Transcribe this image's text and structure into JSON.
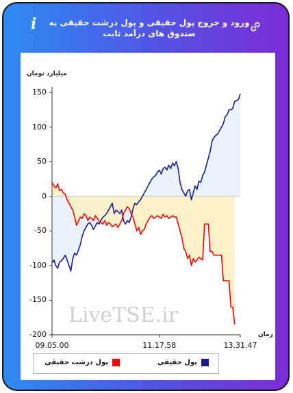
{
  "header": {
    "title": "ورود و خروج پول حقیقی و پول درشت حقیقی به صندوق های درآمد ثابت",
    "info_icon": "info-icon",
    "link_icon": "link-icon"
  },
  "colors": {
    "frame_gradient": [
      "#2d8cf0",
      "#7b2bd6"
    ],
    "series_real": "#1a1a8c",
    "series_big": "#ff0000",
    "fill_positive": "#e6f1f9",
    "fill_negative": "#fbf0bf"
  },
  "watermark": "LiveTSE.ir",
  "chart_data": {
    "type": "line",
    "ylabel": "میلیارد تومان",
    "xlabel": "زمان",
    "ylim": [
      -200,
      150
    ],
    "yticks": [
      150,
      100,
      50,
      0,
      -50,
      -100,
      -150,
      -200
    ],
    "xlim": [
      0,
      100
    ],
    "xticks": [
      {
        "pos": 0,
        "label": "09.05.00"
      },
      {
        "pos": 57,
        "label": "11.17.58"
      },
      {
        "pos": 100,
        "label": "13.31.47"
      }
    ],
    "grid": false,
    "legend_position": "bottom",
    "series": [
      {
        "name": "پول حقیقی",
        "color": "#1a1a8c",
        "points": [
          [
            0,
            -96
          ],
          [
            1,
            -92
          ],
          [
            2,
            -100
          ],
          [
            3,
            -104
          ],
          [
            4,
            -95
          ],
          [
            5,
            -93
          ],
          [
            6,
            -90
          ],
          [
            7,
            -85
          ],
          [
            8,
            -92
          ],
          [
            9,
            -100
          ],
          [
            10,
            -108
          ],
          [
            11,
            -90
          ],
          [
            12,
            -82
          ],
          [
            13,
            -85
          ],
          [
            14,
            -78
          ],
          [
            15,
            -70
          ],
          [
            16,
            -58
          ],
          [
            17,
            -50
          ],
          [
            18,
            -45
          ],
          [
            19,
            -40
          ],
          [
            20,
            -38
          ],
          [
            21,
            -42
          ],
          [
            22,
            -48
          ],
          [
            23,
            -43
          ],
          [
            24,
            -38
          ],
          [
            25,
            -40
          ],
          [
            26,
            -35
          ],
          [
            27,
            -30
          ],
          [
            28,
            -28
          ],
          [
            29,
            -25
          ],
          [
            30,
            -20
          ],
          [
            31,
            -15
          ],
          [
            32,
            -10
          ],
          [
            33,
            -25
          ],
          [
            34,
            -20
          ],
          [
            35,
            -22
          ],
          [
            36,
            -25
          ],
          [
            37,
            -20
          ],
          [
            38,
            -35
          ],
          [
            39,
            -40
          ],
          [
            40,
            -35
          ],
          [
            41,
            -38
          ],
          [
            42,
            -30
          ],
          [
            43,
            -18
          ],
          [
            44,
            -10
          ],
          [
            45,
            -12
          ],
          [
            46,
            -8
          ],
          [
            47,
            -5
          ],
          [
            48,
            0
          ],
          [
            49,
            5
          ],
          [
            50,
            10
          ],
          [
            51,
            15
          ],
          [
            52,
            20
          ],
          [
            53,
            25
          ],
          [
            54,
            28
          ],
          [
            55,
            30
          ],
          [
            56,
            35
          ],
          [
            57,
            38
          ],
          [
            58,
            32
          ],
          [
            59,
            40
          ],
          [
            60,
            42
          ],
          [
            61,
            38
          ],
          [
            62,
            45
          ],
          [
            63,
            40
          ],
          [
            64,
            48
          ],
          [
            65,
            44
          ],
          [
            66,
            50
          ],
          [
            67,
            40
          ],
          [
            68,
            20
          ],
          [
            69,
            10
          ],
          [
            70,
            5
          ],
          [
            71,
            0
          ],
          [
            72,
            8
          ],
          [
            73,
            10
          ],
          [
            74,
            -5
          ],
          [
            75,
            5
          ],
          [
            76,
            15
          ],
          [
            77,
            10
          ],
          [
            78,
            22
          ],
          [
            79,
            20
          ],
          [
            80,
            30
          ],
          [
            81,
            35
          ],
          [
            82,
            45
          ],
          [
            83,
            55
          ],
          [
            84,
            65
          ],
          [
            85,
            80
          ],
          [
            86,
            85
          ],
          [
            87,
            88
          ],
          [
            88,
            90
          ],
          [
            89,
            95
          ],
          [
            90,
            100
          ],
          [
            91,
            105
          ],
          [
            92,
            115
          ],
          [
            93,
            118
          ],
          [
            94,
            125
          ],
          [
            95,
            125
          ],
          [
            96,
            127
          ],
          [
            97,
            137
          ],
          [
            98,
            138
          ],
          [
            99,
            140
          ],
          [
            100,
            148
          ]
        ]
      },
      {
        "name": "پول درشت حقیقی",
        "color": "#ff0000",
        "points": [
          [
            0,
            20
          ],
          [
            1,
            15
          ],
          [
            2,
            12
          ],
          [
            3,
            18
          ],
          [
            4,
            8
          ],
          [
            5,
            10
          ],
          [
            6,
            5
          ],
          [
            7,
            3
          ],
          [
            8,
            -5
          ],
          [
            9,
            -10
          ],
          [
            10,
            -15
          ],
          [
            11,
            -20
          ],
          [
            12,
            -30
          ],
          [
            13,
            -42
          ],
          [
            14,
            -36
          ],
          [
            15,
            -30
          ],
          [
            16,
            -32
          ],
          [
            17,
            -25
          ],
          [
            18,
            -28
          ],
          [
            19,
            -35
          ],
          [
            20,
            -30
          ],
          [
            21,
            -32
          ],
          [
            22,
            -35
          ],
          [
            23,
            -28
          ],
          [
            24,
            -32
          ],
          [
            25,
            -36
          ],
          [
            26,
            -38
          ],
          [
            27,
            -40
          ],
          [
            28,
            -35
          ],
          [
            29,
            -42
          ],
          [
            30,
            -38
          ],
          [
            31,
            -40
          ],
          [
            32,
            -44
          ],
          [
            33,
            -42
          ],
          [
            34,
            -40
          ],
          [
            35,
            -45
          ],
          [
            36,
            -40
          ],
          [
            37,
            -35
          ],
          [
            38,
            -25
          ],
          [
            39,
            -20
          ],
          [
            40,
            -15
          ],
          [
            41,
            -18
          ],
          [
            42,
            -25
          ],
          [
            43,
            -30
          ],
          [
            44,
            -40
          ],
          [
            45,
            -50
          ],
          [
            46,
            -45
          ],
          [
            47,
            -55
          ],
          [
            48,
            -50
          ],
          [
            49,
            -48
          ],
          [
            50,
            -40
          ],
          [
            51,
            -35
          ],
          [
            52,
            -30
          ],
          [
            53,
            -28
          ],
          [
            54,
            -32
          ],
          [
            55,
            -30
          ],
          [
            56,
            -28
          ],
          [
            57,
            -30
          ],
          [
            58,
            -32
          ],
          [
            59,
            -26
          ],
          [
            60,
            -30
          ],
          [
            61,
            -28
          ],
          [
            62,
            -32
          ],
          [
            63,
            -30
          ],
          [
            64,
            -28
          ],
          [
            65,
            -30
          ],
          [
            66,
            -30
          ],
          [
            67,
            -40
          ],
          [
            68,
            -50
          ],
          [
            69,
            -60
          ],
          [
            70,
            -75
          ],
          [
            71,
            -80
          ],
          [
            72,
            -90
          ],
          [
            73,
            -85
          ],
          [
            74,
            -100
          ],
          [
            75,
            -90
          ],
          [
            76,
            -95
          ],
          [
            77,
            -92
          ],
          [
            78,
            -88
          ],
          [
            79,
            -90
          ],
          [
            80,
            -92
          ],
          [
            81,
            -40
          ],
          [
            82,
            -40
          ],
          [
            83,
            -40
          ],
          [
            84,
            -80
          ],
          [
            85,
            -80
          ],
          [
            86,
            -85
          ],
          [
            87,
            -85
          ],
          [
            88,
            -85
          ],
          [
            89,
            -85
          ],
          [
            90,
            -85
          ],
          [
            91,
            -122
          ],
          [
            92,
            -122
          ],
          [
            93,
            -122
          ],
          [
            94,
            -122
          ],
          [
            95,
            -160
          ],
          [
            96,
            -160
          ],
          [
            97,
            -185
          ]
        ]
      }
    ]
  },
  "legend": {
    "items": [
      {
        "label": "پول حقیقی",
        "color": "#1a1a8c"
      },
      {
        "label": "پول درشت حقیقی",
        "color": "#ff0000"
      }
    ]
  }
}
